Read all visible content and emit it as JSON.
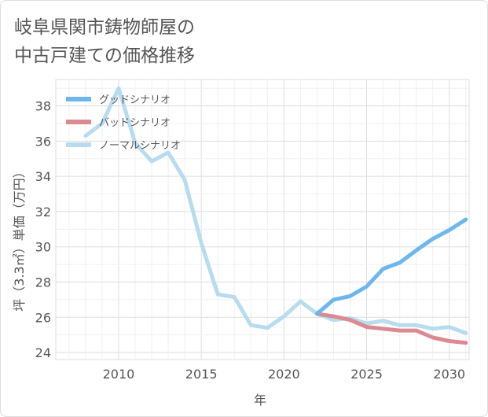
{
  "title_line1": "岐阜県関市鋳物師屋の",
  "title_line2": "中古戸建ての価格推移",
  "colors": {
    "good": "#6cb8ee",
    "bad": "#dc8a92",
    "normal": "#b8dcef",
    "grid": "#dddddd",
    "text": "#555555"
  },
  "chart_data": {
    "type": "line",
    "xlabel": "年",
    "ylabel": "坪（3.3㎡）単価（万円）",
    "xlim": [
      2006.2,
      2031.2
    ],
    "ylim": [
      23.6,
      39.5
    ],
    "x_ticks": [
      2010,
      2015,
      2020,
      2025,
      2030
    ],
    "y_ticks": [
      24,
      26,
      28,
      30,
      32,
      34,
      36,
      38
    ],
    "legend_position": "top-left",
    "grid": true,
    "series": [
      {
        "name": "グッドシナリオ",
        "color": "#6cb8ee",
        "x": [
          2022,
          2023,
          2024,
          2025,
          2026,
          2027,
          2028,
          2029,
          2030,
          2031
        ],
        "y": [
          26.2,
          27.0,
          27.2,
          27.75,
          28.75,
          29.1,
          29.8,
          30.45,
          30.95,
          31.55
        ]
      },
      {
        "name": "バッドシナリオ",
        "color": "#dc8a92",
        "x": [
          2022,
          2023,
          2024,
          2025,
          2026,
          2027,
          2028,
          2029,
          2030,
          2031
        ],
        "y": [
          26.2,
          26.05,
          25.85,
          25.45,
          25.35,
          25.25,
          25.25,
          24.85,
          24.65,
          24.55
        ]
      },
      {
        "name": "ノーマルシナリオ",
        "color": "#b8dcef",
        "x": [
          2008,
          2009,
          2010,
          2011,
          2012,
          2013,
          2014,
          2015,
          2016,
          2017,
          2018,
          2019,
          2020,
          2021,
          2022,
          2023,
          2024,
          2025,
          2026,
          2027,
          2028,
          2029,
          2030,
          2031
        ],
        "y": [
          36.3,
          37.0,
          39.0,
          35.9,
          34.85,
          35.35,
          33.8,
          30.2,
          27.3,
          27.15,
          25.55,
          25.4,
          26.05,
          26.9,
          26.2,
          25.85,
          25.95,
          25.65,
          25.8,
          25.55,
          25.55,
          25.35,
          25.45,
          25.1
        ]
      }
    ]
  }
}
